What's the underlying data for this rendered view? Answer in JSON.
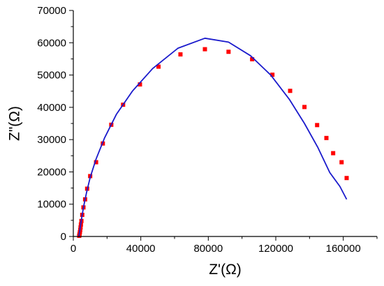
{
  "chart_data": {
    "type": "scatter",
    "xlabel": "Z'(Ω)",
    "ylabel": "Z\"(Ω)",
    "xlim": [
      0,
      180000
    ],
    "ylim": [
      0,
      70000
    ],
    "x_ticks": [
      0,
      40000,
      80000,
      120000,
      160000
    ],
    "y_ticks": [
      0,
      10000,
      20000,
      30000,
      40000,
      50000,
      60000,
      70000
    ],
    "grid": false,
    "legend": "none",
    "series": [
      {
        "kind": "points",
        "color": "#ff0000",
        "points": [
          [
            3500,
            200
          ],
          [
            3700,
            700
          ],
          [
            3900,
            1300
          ],
          [
            4100,
            2000
          ],
          [
            4300,
            2800
          ],
          [
            4500,
            3700
          ],
          [
            4800,
            4800
          ],
          [
            5300,
            6700
          ],
          [
            6000,
            9000
          ],
          [
            7000,
            11500
          ],
          [
            8200,
            14800
          ],
          [
            10000,
            18700
          ],
          [
            13500,
            23000
          ],
          [
            17500,
            28800
          ],
          [
            22500,
            34600
          ],
          [
            29500,
            40800
          ],
          [
            39500,
            47100
          ],
          [
            50500,
            52600
          ],
          [
            63500,
            56400
          ],
          [
            78000,
            58000
          ],
          [
            92000,
            57200
          ],
          [
            106000,
            54900
          ],
          [
            118000,
            50100
          ],
          [
            128500,
            45100
          ],
          [
            137000,
            40100
          ],
          [
            144500,
            34500
          ],
          [
            150000,
            30500
          ],
          [
            154000,
            25800
          ],
          [
            159000,
            23000
          ],
          [
            162000,
            18100
          ]
        ]
      },
      {
        "kind": "line",
        "color": "#1a1acc",
        "points": [
          [
            3300,
            0
          ],
          [
            3600,
            1000
          ],
          [
            4000,
            2500
          ],
          [
            4500,
            4200
          ],
          [
            5200,
            6500
          ],
          [
            6200,
            9500
          ],
          [
            7800,
            13500
          ],
          [
            10000,
            18300
          ],
          [
            13500,
            24000
          ],
          [
            18500,
            30500
          ],
          [
            25500,
            37800
          ],
          [
            35000,
            45000
          ],
          [
            47000,
            52000
          ],
          [
            62000,
            58300
          ],
          [
            78000,
            61400
          ],
          [
            92000,
            60200
          ],
          [
            105000,
            56000
          ],
          [
            117000,
            50000
          ],
          [
            128000,
            42500
          ],
          [
            137000,
            35000
          ],
          [
            145000,
            27500
          ],
          [
            152000,
            19800
          ],
          [
            158000,
            15500
          ],
          [
            162000,
            11500
          ]
        ]
      }
    ]
  }
}
